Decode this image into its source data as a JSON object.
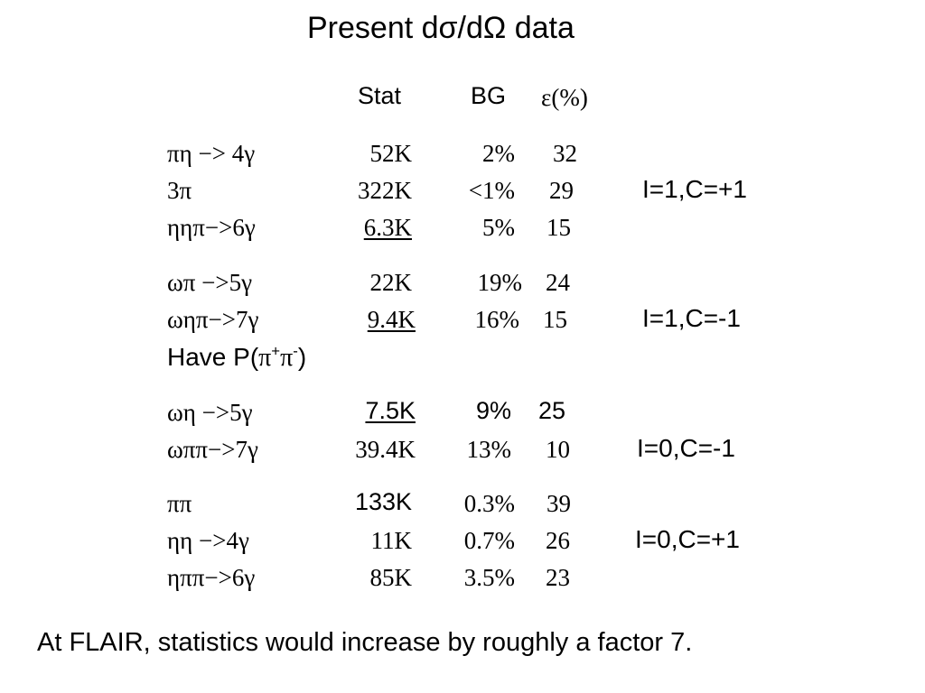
{
  "title": "Present dσ/dΩ data",
  "headers": {
    "stat": "Stat",
    "bg": "BG",
    "eff": "ε(%)"
  },
  "groups": [
    {
      "label": "I=1,C=+1",
      "rows": [
        {
          "reaction": "πη −> 4γ",
          "stat": "52K",
          "bg": "2%",
          "eff": "32"
        },
        {
          "reaction": "3π",
          "stat": "322K",
          "bg": "<1%",
          "eff": "29"
        },
        {
          "reaction": "ηηπ−>6γ",
          "stat": "6.3K",
          "bg": "5%",
          "eff": "15"
        }
      ]
    },
    {
      "label": "I=1,C=-1",
      "rows": [
        {
          "reaction": "ωπ  −>5γ",
          "stat": "22K",
          "bg": "19%",
          "eff": "24"
        },
        {
          "reaction": "ωηπ−>7γ",
          "stat": "9.4K",
          "bg": "16%",
          "eff": "15"
        }
      ],
      "note": {
        "prefix": "Have P(",
        "pi1": "π",
        "sup1": "+",
        "pi2": "π",
        "sup2": "-",
        "suffix": ")"
      }
    },
    {
      "label": "I=0,C=-1",
      "rows": [
        {
          "reaction": "ωη  −>5γ",
          "stat": "7.5K",
          "bg": "9%",
          "eff": "25"
        },
        {
          "reaction": "ωππ−>7γ",
          "stat": "39.4K",
          "bg": "13%",
          "eff": "10"
        }
      ]
    },
    {
      "label": "I=0,C=+1",
      "rows": [
        {
          "reaction": "ππ",
          "stat": "133K",
          "bg": "0.3%",
          "eff": "39"
        },
        {
          "reaction": "ηη  −>4γ",
          "stat": "11K",
          "bg": "0.7%",
          "eff": "26"
        },
        {
          "reaction": "ηππ−>6γ",
          "stat": "85K",
          "bg": "3.5%",
          "eff": "23"
        }
      ]
    }
  ],
  "footer": "At FLAIR, statistics would increase by roughly a factor 7."
}
